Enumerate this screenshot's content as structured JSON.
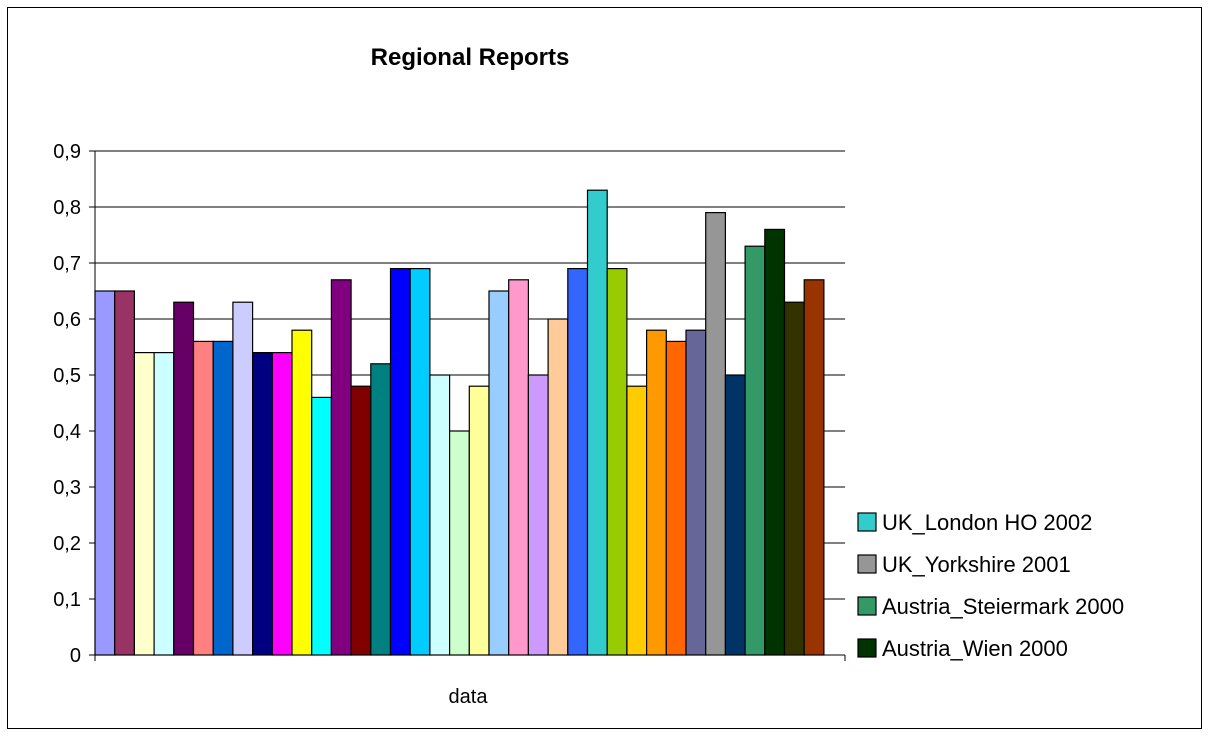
{
  "chart_data": {
    "type": "bar",
    "title": "Regional Reports",
    "xlabel": "data",
    "ylabel": "",
    "categories": [
      "data"
    ],
    "ylim": [
      0,
      0.9
    ],
    "yticks": [
      "0",
      "0,1",
      "0,2",
      "0,3",
      "0,4",
      "0,5",
      "0,6",
      "0,7",
      "0,8",
      "0,9"
    ],
    "grid": true,
    "legend_position": "right",
    "series": [
      {
        "value": 0.65,
        "color": "#9999FF"
      },
      {
        "value": 0.65,
        "color": "#993366"
      },
      {
        "value": 0.54,
        "color": "#FFFFCC"
      },
      {
        "value": 0.54,
        "color": "#CCFFFF"
      },
      {
        "value": 0.63,
        "color": "#660066"
      },
      {
        "value": 0.56,
        "color": "#FF8080"
      },
      {
        "value": 0.56,
        "color": "#0066CC"
      },
      {
        "value": 0.63,
        "color": "#CCCCFF"
      },
      {
        "value": 0.54,
        "color": "#000080"
      },
      {
        "value": 0.54,
        "color": "#FF00FF"
      },
      {
        "value": 0.58,
        "color": "#FFFF00"
      },
      {
        "value": 0.46,
        "color": "#00FFFF"
      },
      {
        "value": 0.67,
        "color": "#800080"
      },
      {
        "value": 0.48,
        "color": "#800000"
      },
      {
        "value": 0.52,
        "color": "#008080"
      },
      {
        "value": 0.69,
        "color": "#0000FF"
      },
      {
        "value": 0.69,
        "color": "#00CCFF"
      },
      {
        "value": 0.5,
        "color": "#CCFFFF"
      },
      {
        "value": 0.4,
        "color": "#CCFFCC"
      },
      {
        "value": 0.48,
        "color": "#FFFF99"
      },
      {
        "value": 0.65,
        "color": "#99CCFF"
      },
      {
        "value": 0.67,
        "color": "#FF99CC"
      },
      {
        "value": 0.5,
        "color": "#CC99FF"
      },
      {
        "value": 0.6,
        "color": "#FFCC99"
      },
      {
        "value": 0.69,
        "color": "#3366FF"
      },
      {
        "value": 0.83,
        "color": "#33CCCC",
        "name": "UK_London HO 2002"
      },
      {
        "value": 0.69,
        "color": "#99CC00"
      },
      {
        "value": 0.48,
        "color": "#FFCC00"
      },
      {
        "value": 0.58,
        "color": "#FF9900"
      },
      {
        "value": 0.56,
        "color": "#FF6600"
      },
      {
        "value": 0.58,
        "color": "#666699"
      },
      {
        "value": 0.79,
        "color": "#969696",
        "name": "UK_Yorkshire 2001"
      },
      {
        "value": 0.5,
        "color": "#003366"
      },
      {
        "value": 0.73,
        "color": "#339966",
        "name": "Austria_Steiermark 2000"
      },
      {
        "value": 0.76,
        "color": "#003300",
        "name": "Austria_Wien 2000"
      },
      {
        "value": 0.63,
        "color": "#333300"
      },
      {
        "value": 0.67,
        "color": "#993300"
      }
    ]
  }
}
